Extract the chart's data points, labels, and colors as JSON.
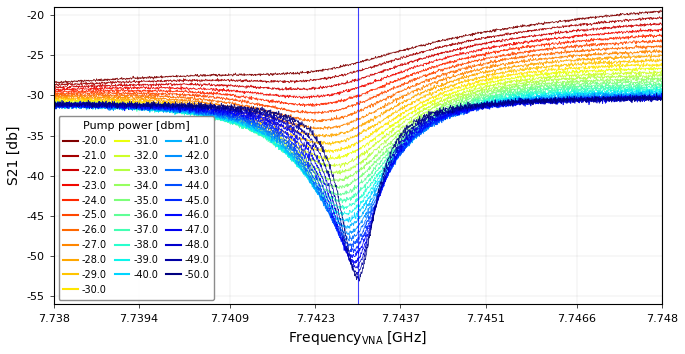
{
  "freq_start": 7.738,
  "freq_end": 7.748,
  "freq_points": 1601,
  "resonance_freq": 7.743,
  "pump_powers": [
    -20.0,
    -21.0,
    -22.0,
    -23.0,
    -24.0,
    -25.0,
    -26.0,
    -27.0,
    -28.0,
    -29.0,
    -30.0,
    -31.0,
    -32.0,
    -33.0,
    -34.0,
    -35.0,
    -36.0,
    -37.0,
    -38.0,
    -39.0,
    -40.0,
    -41.0,
    -42.0,
    -43.0,
    -44.0,
    -45.0,
    -46.0,
    -47.0,
    -48.0,
    -49.0,
    -50.0
  ],
  "baseline_db": -31.0,
  "ylabel": "S21 [db]",
  "legend_title": "Pump power [dbm]",
  "xtick_labels": [
    "7.738",
    "7.7394",
    "7.7409",
    "7.7423",
    "7.7437",
    "7.7451",
    "7.7466",
    "7.748"
  ],
  "xticks": [
    7.738,
    7.7394,
    7.7409,
    7.7423,
    7.7437,
    7.7451,
    7.7466,
    7.748
  ],
  "yticks": [
    -20,
    -25,
    -30,
    -35,
    -40,
    -45,
    -50,
    -55
  ],
  "ylim": [
    -56,
    -19
  ],
  "xlim": [
    7.738,
    7.748
  ]
}
